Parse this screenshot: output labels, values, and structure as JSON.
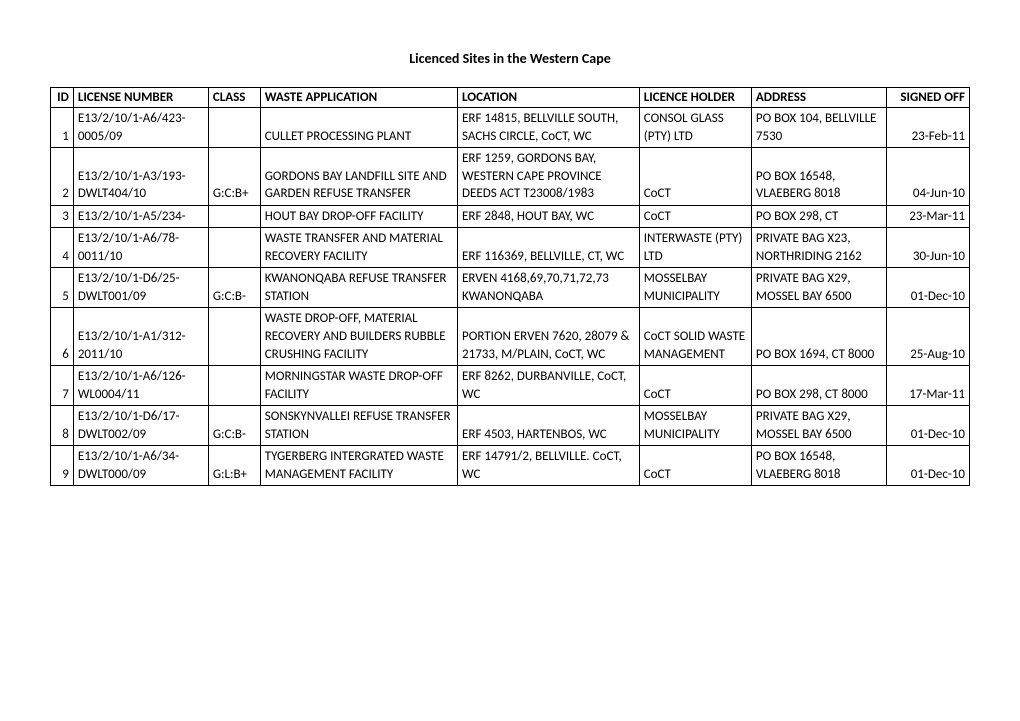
{
  "title": "Licenced Sites in the Western Cape",
  "columns": {
    "id": "ID",
    "license": "LICENSE NUMBER",
    "class": "CLASS",
    "waste": "WASTE APPLICATION",
    "location": "LOCATION",
    "holder": "LICENCE HOLDER",
    "address": "ADDRESS",
    "signed": "SIGNED OFF"
  },
  "rows": [
    {
      "id": "1",
      "license": "E13/2/10/1-A6/423-0005/09",
      "class": "",
      "waste": "CULLET PROCESSING PLANT",
      "location": "ERF 14815, BELLVILLE SOUTH, SACHS CIRCLE, CoCT, WC",
      "holder": "CONSOL GLASS (PTY) LTD",
      "address": "PO BOX 104, BELLVILLE 7530",
      "signed": "23-Feb-11"
    },
    {
      "id": "2",
      "license": "E13/2/10/1-A3/193-DWLT404/10",
      "class": "G:C:B+",
      "waste": "GORDONS BAY LANDFILL SITE AND GARDEN REFUSE TRANSFER",
      "location": "ERF 1259, GORDONS BAY, WESTERN CAPE PROVINCE DEEDS ACT T23008/1983",
      "holder": "CoCT",
      "address": "PO BOX 16548, VLAEBERG 8018",
      "signed": "04-Jun-10"
    },
    {
      "id": "3",
      "license": "E13/2/10/1-A5/234-",
      "class": "",
      "waste": "HOUT BAY DROP-OFF FACILITY",
      "location": "ERF 2848, HOUT BAY, WC",
      "holder": "CoCT",
      "address": "PO BOX 298, CT",
      "signed": "23-Mar-11"
    },
    {
      "id": "4",
      "license": "E13/2/10/1-A6/78-0011/10",
      "class": "",
      "waste": "WASTE TRANSFER AND MATERIAL RECOVERY FACILITY",
      "location": "ERF 116369, BELLVILLE, CT, WC",
      "holder": "INTERWASTE (PTY) LTD",
      "address": "PRIVATE BAG X23, NORTHRIDING 2162",
      "signed": "30-Jun-10"
    },
    {
      "id": "5",
      "license": "E13/2/10/1-D6/25-DWLT001/09",
      "class": "G:C:B-",
      "waste": "KWANONQABA REFUSE TRANSFER STATION",
      "location": "ERVEN 4168,69,70,71,72,73 KWANONQABA",
      "holder": "MOSSELBAY MUNICIPALITY",
      "address": "PRIVATE BAG X29, MOSSEL BAY 6500",
      "signed": "01-Dec-10"
    },
    {
      "id": "6",
      "license": "E13/2/10/1-A1/312-2011/10",
      "class": "",
      "waste": "WASTE DROP-OFF, MATERIAL RECOVERY AND BUILDERS RUBBLE CRUSHING FACILITY",
      "location": "PORTION ERVEN 7620, 28079 & 21733, M/PLAIN, CoCT, WC",
      "holder": "CoCT SOLID WASTE MANAGEMENT",
      "address": "PO BOX 1694, CT 8000",
      "signed": "25-Aug-10"
    },
    {
      "id": "7",
      "license": "E13/2/10/1-A6/126-WL0004/11",
      "class": "",
      "waste": "MORNINGSTAR WASTE DROP-OFF FACILITY",
      "location": "ERF 8262, DURBANVILLE, CoCT, WC",
      "holder": "CoCT",
      "address": "PO BOX 298, CT 8000",
      "signed": "17-Mar-11"
    },
    {
      "id": "8",
      "license": "E13/2/10/1-D6/17-DWLT002/09",
      "class": "G:C:B-",
      "waste": "SONSKYNVALLEI REFUSE TRANSFER STATION",
      "location": "ERF 4503, HARTENBOS, WC",
      "holder": "MOSSELBAY MUNICIPALITY",
      "address": "PRIVATE BAG X29, MOSSEL BAY 6500",
      "signed": "01-Dec-10"
    },
    {
      "id": "9",
      "license": "E13/2/10/1-A6/34-DWLT000/09",
      "class": "G:L:B+",
      "waste": "TYGERBERG INTERGRATED WASTE MANAGEMENT FACILITY",
      "location": "ERF 14791/2, BELLVILLE. CoCT, WC",
      "holder": "CoCT",
      "address": "PO BOX 16548, VLAEBERG 8018",
      "signed": "01-Dec-10"
    }
  ]
}
